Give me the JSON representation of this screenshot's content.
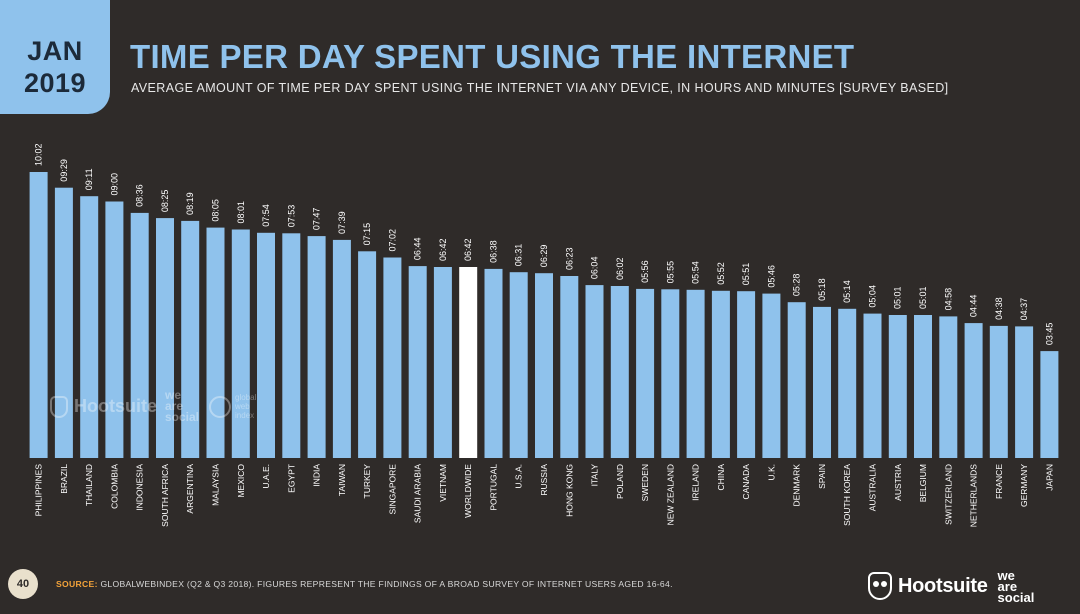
{
  "badge": {
    "month": "JAN",
    "year": "2019"
  },
  "header": {
    "title": "TIME PER DAY SPENT USING THE INTERNET",
    "subtitle": "AVERAGE AMOUNT OF TIME PER DAY SPENT USING THE INTERNET VIA ANY DEVICE, IN HOURS AND MINUTES [SURVEY BASED]"
  },
  "footer": {
    "page_number": "40",
    "source_label": "SOURCE:",
    "source_text": "GLOBALWEBINDEX (Q2 & Q3 2018). FIGURES REPRESENT THE FINDINGS OF A BROAD SURVEY OF INTERNET USERS AGED 16-64.",
    "brand": "Hootsuite",
    "partner_line1": "we",
    "partner_line2": "are",
    "partner_line3": "social"
  },
  "watermark": {
    "brand": "Hootsuite",
    "partner_line1": "we",
    "partner_line2": "are",
    "partner_line3": "social",
    "gwi_line1": "global",
    "gwi_line2": "web",
    "gwi_line3": "index"
  },
  "colors": {
    "background": "#2f2b29",
    "bar": "#8fc2ec",
    "highlight_bar": "#ffffff",
    "accent": "#f3a33a"
  },
  "chart_data": {
    "type": "bar",
    "unit": "hours:minutes",
    "highlight_category": "WORLDWIDE",
    "ylim": [
      0,
      10.2
    ],
    "grid": false,
    "legend": "none",
    "categories": [
      "PHILIPPINES",
      "BRAZIL",
      "THAILAND",
      "COLOMBIA",
      "INDONESIA",
      "SOUTH AFRICA",
      "ARGENTINA",
      "MALAYSIA",
      "MEXICO",
      "U.A.E.",
      "EGYPT",
      "INDIA",
      "TAIWAN",
      "TURKEY",
      "SINGAPORE",
      "SAUDI ARABIA",
      "VIETNAM",
      "WORLDWIDE",
      "PORTUGAL",
      "U.S.A.",
      "RUSSIA",
      "HONG KONG",
      "ITALY",
      "POLAND",
      "SWEDEN",
      "NEW ZEALAND",
      "IRELAND",
      "CHINA",
      "CANADA",
      "U.K.",
      "DENMARK",
      "SPAIN",
      "SOUTH KOREA",
      "AUSTRALIA",
      "AUSTRIA",
      "BELGIUM",
      "SWITZERLAND",
      "NETHERLANDS",
      "FRANCE",
      "GERMANY",
      "JAPAN"
    ],
    "labels": [
      "10:02",
      "09:29",
      "09:11",
      "09:00",
      "08:36",
      "08:25",
      "08:19",
      "08:05",
      "08:01",
      "07:54",
      "07:53",
      "07:47",
      "07:39",
      "07:15",
      "07:02",
      "06:44",
      "06:42",
      "06:42",
      "06:38",
      "06:31",
      "06:29",
      "06:23",
      "06:04",
      "06:02",
      "05:56",
      "05:55",
      "05:54",
      "05:52",
      "05:51",
      "05:46",
      "05:28",
      "05:18",
      "05:14",
      "05:04",
      "05:01",
      "05:01",
      "04:58",
      "04:44",
      "04:38",
      "04:37",
      "03:45"
    ]
  }
}
